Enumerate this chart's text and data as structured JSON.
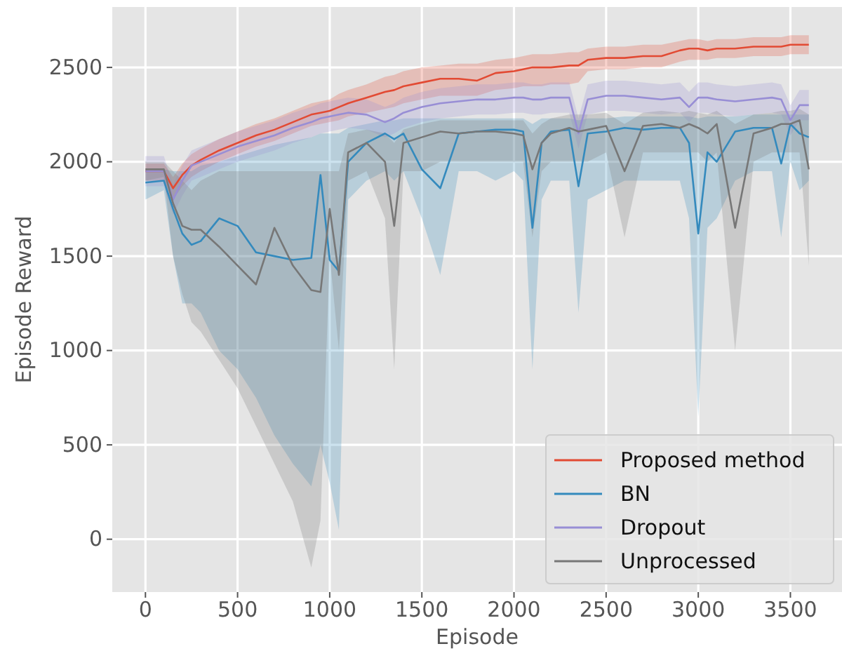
{
  "chart_data": {
    "type": "line",
    "xlabel": "Episode",
    "ylabel": "Episode Reward",
    "xlim": [
      -180,
      3780
    ],
    "ylim": [
      -280,
      2820
    ],
    "xticks": [
      0,
      500,
      1000,
      1500,
      2000,
      2500,
      3000,
      3500
    ],
    "yticks": [
      0,
      500,
      1000,
      1500,
      2000,
      2500
    ],
    "grid": true,
    "legend": "bottom right",
    "marker": "none",
    "line_style": "solid",
    "x": [
      0,
      100,
      150,
      200,
      250,
      300,
      400,
      500,
      600,
      700,
      800,
      900,
      950,
      1000,
      1050,
      1100,
      1200,
      1300,
      1350,
      1400,
      1500,
      1600,
      1700,
      1800,
      1900,
      2000,
      2050,
      2100,
      2150,
      2200,
      2300,
      2350,
      2400,
      2500,
      2600,
      2700,
      2800,
      2900,
      2950,
      3000,
      3050,
      3100,
      3200,
      3300,
      3400,
      3450,
      3500,
      3550,
      3600
    ],
    "series": [
      {
        "name": "Proposed method",
        "color": "#e24a33",
        "values": [
          1950,
          1950,
          1860,
          1930,
          1980,
          2010,
          2060,
          2100,
          2140,
          2170,
          2210,
          2250,
          2260,
          2270,
          2290,
          2310,
          2340,
          2370,
          2380,
          2400,
          2420,
          2440,
          2440,
          2430,
          2470,
          2480,
          2490,
          2500,
          2500,
          2500,
          2510,
          2510,
          2540,
          2550,
          2550,
          2560,
          2560,
          2590,
          2600,
          2600,
          2590,
          2600,
          2600,
          2610,
          2610,
          2610,
          2620,
          2620,
          2620
        ],
        "lower": [
          1900,
          1900,
          1800,
          1870,
          1920,
          1950,
          2000,
          2040,
          2080,
          2110,
          2150,
          2190,
          2200,
          2210,
          2220,
          2240,
          2260,
          2280,
          2290,
          2310,
          2330,
          2350,
          2350,
          2350,
          2380,
          2390,
          2400,
          2400,
          2400,
          2410,
          2410,
          2420,
          2480,
          2490,
          2490,
          2500,
          2500,
          2530,
          2540,
          2540,
          2540,
          2550,
          2550,
          2560,
          2560,
          2560,
          2570,
          2570,
          2570
        ],
        "upper": [
          1990,
          1990,
          1920,
          1990,
          2040,
          2070,
          2120,
          2160,
          2200,
          2230,
          2270,
          2310,
          2320,
          2330,
          2360,
          2380,
          2410,
          2450,
          2460,
          2480,
          2500,
          2510,
          2520,
          2520,
          2540,
          2550,
          2560,
          2570,
          2570,
          2570,
          2580,
          2580,
          2600,
          2610,
          2610,
          2620,
          2620,
          2640,
          2650,
          2650,
          2640,
          2650,
          2650,
          2660,
          2660,
          2660,
          2670,
          2670,
          2670
        ]
      },
      {
        "name": "BN",
        "color": "#348abd",
        "values": [
          1890,
          1900,
          1750,
          1620,
          1560,
          1580,
          1700,
          1660,
          1520,
          1500,
          1480,
          1490,
          1930,
          1480,
          1420,
          2000,
          2100,
          2150,
          2120,
          2150,
          1960,
          1860,
          2150,
          2160,
          2170,
          2170,
          2160,
          1650,
          2100,
          2160,
          2170,
          1870,
          2150,
          2160,
          2180,
          2170,
          2180,
          2180,
          2100,
          1620,
          2050,
          2000,
          2160,
          2180,
          2180,
          1990,
          2200,
          2150,
          2130
        ],
        "lower": [
          1800,
          1850,
          1500,
          1250,
          1250,
          1200,
          1000,
          900,
          750,
          550,
          400,
          280,
          500,
          300,
          50,
          1800,
          1900,
          1950,
          1900,
          1950,
          1700,
          1400,
          1950,
          1950,
          1900,
          1950,
          1900,
          900,
          1800,
          1900,
          1900,
          1200,
          1800,
          1850,
          1900,
          1900,
          1900,
          1900,
          1700,
          650,
          1650,
          1700,
          1900,
          1950,
          1950,
          1600,
          2000,
          1850,
          1900
        ],
        "upper": [
          1950,
          1960,
          1950,
          1950,
          1950,
          1980,
          2000,
          2030,
          2060,
          2090,
          2110,
          2130,
          2150,
          2150,
          2150,
          2180,
          2200,
          2220,
          2220,
          2230,
          2230,
          2230,
          2230,
          2230,
          2230,
          2230,
          2230,
          2200,
          2230,
          2230,
          2230,
          2220,
          2230,
          2230,
          2240,
          2240,
          2240,
          2240,
          2240,
          2230,
          2240,
          2240,
          2240,
          2250,
          2250,
          2250,
          2250,
          2250,
          2250
        ]
      },
      {
        "name": "Dropout",
        "color": "#988ed5",
        "values": [
          1950,
          1950,
          1800,
          1900,
          1980,
          2000,
          2040,
          2080,
          2110,
          2140,
          2180,
          2210,
          2230,
          2240,
          2250,
          2260,
          2250,
          2210,
          2230,
          2260,
          2290,
          2310,
          2320,
          2330,
          2330,
          2340,
          2340,
          2330,
          2330,
          2340,
          2340,
          2150,
          2330,
          2350,
          2350,
          2340,
          2330,
          2340,
          2290,
          2340,
          2340,
          2330,
          2320,
          2330,
          2340,
          2330,
          2220,
          2300,
          2300
        ],
        "lower": [
          1870,
          1870,
          1720,
          1820,
          1900,
          1920,
          1960,
          2000,
          2030,
          2060,
          2100,
          2130,
          2150,
          2160,
          2170,
          2180,
          2170,
          2130,
          2150,
          2180,
          2210,
          2230,
          2240,
          2250,
          2250,
          2260,
          2260,
          2250,
          2250,
          2260,
          2260,
          2070,
          2250,
          2270,
          2270,
          2260,
          2250,
          2260,
          2210,
          2260,
          2260,
          2250,
          2240,
          2250,
          2260,
          2250,
          2140,
          2220,
          2220
        ],
        "upper": [
          2030,
          2030,
          1880,
          1980,
          2060,
          2080,
          2120,
          2160,
          2190,
          2220,
          2260,
          2290,
          2310,
          2320,
          2330,
          2340,
          2330,
          2290,
          2310,
          2340,
          2370,
          2390,
          2400,
          2410,
          2410,
          2420,
          2420,
          2410,
          2410,
          2420,
          2420,
          2230,
          2410,
          2430,
          2430,
          2420,
          2410,
          2420,
          2370,
          2420,
          2420,
          2410,
          2400,
          2410,
          2420,
          2410,
          2300,
          2380,
          2380
        ]
      },
      {
        "name": "Unprocessed",
        "color": "#777777",
        "values": [
          1960,
          1960,
          1780,
          1660,
          1640,
          1640,
          1550,
          1450,
          1350,
          1650,
          1450,
          1320,
          1310,
          1750,
          1400,
          2050,
          2100,
          2000,
          1660,
          2100,
          2130,
          2160,
          2150,
          2160,
          2160,
          2150,
          2140,
          1960,
          2100,
          2150,
          2180,
          2160,
          2170,
          2190,
          1950,
          2190,
          2200,
          2180,
          2200,
          2180,
          2150,
          2200,
          1650,
          2150,
          2180,
          2200,
          2200,
          2220,
          1960
        ],
        "lower": [
          1900,
          1920,
          1500,
          1300,
          1150,
          1100,
          950,
          800,
          600,
          400,
          200,
          -150,
          100,
          1500,
          1000,
          1900,
          1950,
          1700,
          900,
          1950,
          1950,
          2000,
          2000,
          2000,
          2000,
          2000,
          2000,
          1600,
          1950,
          2000,
          2000,
          2000,
          2000,
          2050,
          1600,
          2050,
          2050,
          2050,
          2050,
          2050,
          2000,
          2050,
          1000,
          2000,
          2050,
          2050,
          2050,
          2050,
          1450
        ],
        "upper": [
          2000,
          2000,
          1950,
          1900,
          1850,
          1900,
          1950,
          1950,
          1950,
          1950,
          1950,
          1950,
          1950,
          1950,
          1950,
          2150,
          2170,
          2150,
          2100,
          2170,
          2200,
          2220,
          2220,
          2220,
          2220,
          2220,
          2220,
          2150,
          2200,
          2230,
          2250,
          2250,
          2250,
          2260,
          2200,
          2260,
          2270,
          2260,
          2270,
          2260,
          2250,
          2270,
          2200,
          2250,
          2260,
          2270,
          2270,
          2280,
          2250
        ]
      }
    ]
  }
}
